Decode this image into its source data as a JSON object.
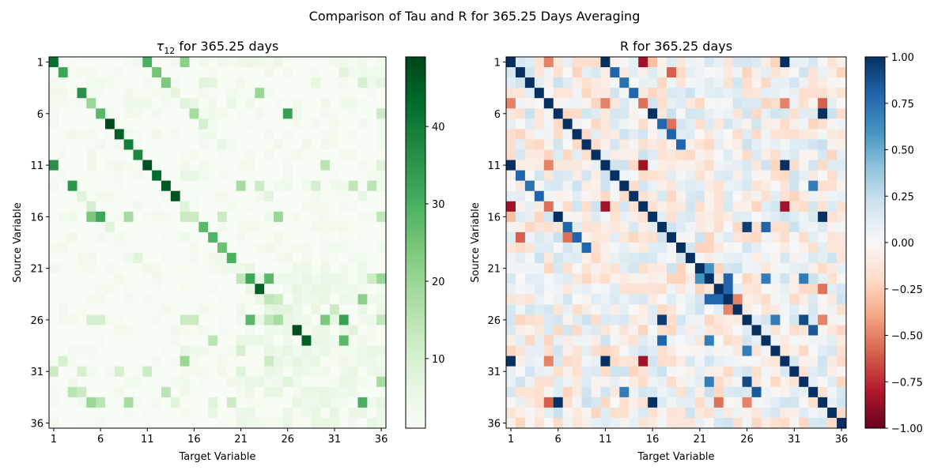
{
  "suptitle": "Comparison of Tau and R for 365.25 Days Averaging",
  "chart_data": [
    {
      "type": "heatmap",
      "title_prefix": "τ",
      "title_sub": "12",
      "title_rest": " for 365.25 days",
      "xlabel": "Target Variable",
      "ylabel": "Source Variable",
      "xticks": [
        "1",
        "6",
        "11",
        "16",
        "21",
        "26",
        "31",
        "36"
      ],
      "yticks": [
        "1",
        "6",
        "11",
        "16",
        "21",
        "26",
        "31",
        "36"
      ],
      "colormap": "Greens",
      "clim": [
        1,
        49
      ],
      "colorbar_ticks": [
        "10",
        "20",
        "30",
        "40"
      ],
      "colorbar_tick_values": [
        10,
        20,
        30,
        40
      ],
      "size": 36,
      "cells_note": "values listed as [row, col, value] for cells above background (~1)",
      "cells": [
        [
          1,
          1,
          42
        ],
        [
          1,
          11,
          30
        ],
        [
          1,
          15,
          22
        ],
        [
          1,
          21,
          4
        ],
        [
          1,
          22,
          5
        ],
        [
          1,
          23,
          4
        ],
        [
          1,
          25,
          5
        ],
        [
          1,
          32,
          4
        ],
        [
          1,
          34,
          4
        ],
        [
          2,
          2,
          32
        ],
        [
          2,
          12,
          25
        ],
        [
          2,
          32,
          8
        ],
        [
          3,
          13,
          24
        ],
        [
          3,
          17,
          8
        ],
        [
          3,
          18,
          7
        ],
        [
          3,
          29,
          6
        ],
        [
          3,
          34,
          10
        ],
        [
          3,
          36,
          7
        ],
        [
          4,
          4,
          36
        ],
        [
          4,
          14,
          7
        ],
        [
          4,
          23,
          20
        ],
        [
          5,
          5,
          20
        ],
        [
          5,
          9,
          4
        ],
        [
          5,
          10,
          4
        ],
        [
          5,
          15,
          8
        ],
        [
          5,
          16,
          6
        ],
        [
          5,
          20,
          5
        ],
        [
          5,
          30,
          4
        ],
        [
          6,
          6,
          28
        ],
        [
          6,
          16,
          18
        ],
        [
          6,
          26,
          33
        ],
        [
          6,
          36,
          12
        ],
        [
          7,
          7,
          48
        ],
        [
          7,
          17,
          10
        ],
        [
          8,
          8,
          45
        ],
        [
          9,
          9,
          40
        ],
        [
          9,
          19,
          6
        ],
        [
          10,
          10,
          38
        ],
        [
          11,
          1,
          36
        ],
        [
          11,
          11,
          47
        ],
        [
          11,
          30,
          15
        ],
        [
          11,
          36,
          8
        ],
        [
          12,
          12,
          43
        ],
        [
          12,
          15,
          6
        ],
        [
          12,
          16,
          6
        ],
        [
          13,
          3,
          35
        ],
        [
          13,
          13,
          46
        ],
        [
          13,
          21,
          18
        ],
        [
          13,
          23,
          12
        ],
        [
          13,
          29,
          10
        ],
        [
          13,
          33,
          14
        ],
        [
          13,
          35,
          15
        ],
        [
          14,
          4,
          8
        ],
        [
          14,
          14,
          47
        ],
        [
          14,
          24,
          8
        ],
        [
          14,
          34,
          6
        ],
        [
          15,
          5,
          10
        ],
        [
          15,
          15,
          8
        ],
        [
          16,
          5,
          24
        ],
        [
          16,
          6,
          32
        ],
        [
          16,
          9,
          18
        ],
        [
          16,
          15,
          12
        ],
        [
          16,
          16,
          12
        ],
        [
          16,
          19,
          12
        ],
        [
          16,
          25,
          20
        ],
        [
          16,
          36,
          14
        ],
        [
          17,
          7,
          8
        ],
        [
          17,
          17,
          28
        ],
        [
          18,
          18,
          29
        ],
        [
          19,
          19,
          26
        ],
        [
          20,
          10,
          8
        ],
        [
          20,
          20,
          30
        ],
        [
          22,
          21,
          14
        ],
        [
          22,
          22,
          32
        ],
        [
          22,
          24,
          28
        ],
        [
          22,
          35,
          12
        ],
        [
          22,
          36,
          20
        ],
        [
          23,
          23,
          45
        ],
        [
          23,
          30,
          6
        ],
        [
          24,
          24,
          14
        ],
        [
          24,
          25,
          12
        ],
        [
          24,
          34,
          22
        ],
        [
          25,
          25,
          8
        ],
        [
          25,
          26,
          8
        ],
        [
          25,
          31,
          12
        ],
        [
          25,
          34,
          6
        ],
        [
          26,
          5,
          10
        ],
        [
          26,
          6,
          10
        ],
        [
          26,
          15,
          12
        ],
        [
          26,
          16,
          12
        ],
        [
          26,
          22,
          28
        ],
        [
          26,
          24,
          14
        ],
        [
          26,
          25,
          18
        ],
        [
          26,
          30,
          24
        ],
        [
          26,
          32,
          33
        ],
        [
          26,
          36,
          14
        ],
        [
          27,
          27,
          48
        ],
        [
          27,
          33,
          8
        ],
        [
          28,
          18,
          15
        ],
        [
          28,
          23,
          6
        ],
        [
          28,
          28,
          45
        ],
        [
          28,
          32,
          28
        ],
        [
          29,
          15,
          6
        ],
        [
          29,
          21,
          10
        ],
        [
          29,
          24,
          6
        ],
        [
          30,
          2,
          10
        ],
        [
          30,
          15,
          20
        ],
        [
          30,
          24,
          12
        ],
        [
          31,
          1,
          12
        ],
        [
          31,
          4,
          10
        ],
        [
          31,
          8,
          10
        ],
        [
          31,
          11,
          12
        ],
        [
          31,
          21,
          8
        ],
        [
          31,
          24,
          6
        ],
        [
          32,
          26,
          8
        ],
        [
          32,
          36,
          18
        ],
        [
          33,
          3,
          15
        ],
        [
          33,
          4,
          12
        ],
        [
          33,
          13,
          15
        ],
        [
          33,
          24,
          6
        ],
        [
          34,
          5,
          20
        ],
        [
          34,
          6,
          15
        ],
        [
          34,
          9,
          18
        ],
        [
          34,
          14,
          8
        ],
        [
          34,
          18,
          8
        ],
        [
          34,
          20,
          12
        ],
        [
          34,
          34,
          30
        ],
        [
          35,
          18,
          6
        ],
        [
          35,
          29,
          6
        ],
        [
          35,
          34,
          6
        ]
      ]
    },
    {
      "type": "heatmap",
      "title": "R for 365.25 days",
      "xlabel": "Target Variable",
      "ylabel": "Source Variable",
      "xticks": [
        "1",
        "6",
        "11",
        "16",
        "21",
        "26",
        "31",
        "36"
      ],
      "yticks": [
        "1",
        "6",
        "11",
        "16",
        "21",
        "26",
        "31",
        "36"
      ],
      "colormap": "RdBu",
      "clim": [
        -1,
        1
      ],
      "colorbar_ticks": [
        "1.00",
        "0.75",
        "0.50",
        "0.25",
        "0.00",
        "−0.25",
        "−0.50",
        "−0.75",
        "−1.00"
      ],
      "colorbar_tick_values": [
        1,
        0.75,
        0.5,
        0.25,
        0,
        -0.25,
        -0.5,
        -0.75,
        -1
      ],
      "size": 36,
      "diagonal": 1.0,
      "cells_note": "notable off-diagonal values listed as [row, col, value]; matrix is symmetric; unlisted cells are near zero",
      "cells": [
        [
          1,
          11,
          1.0
        ],
        [
          1,
          30,
          1.0
        ],
        [
          1,
          15,
          -0.85
        ],
        [
          1,
          5,
          -0.5
        ],
        [
          1,
          16,
          -0.3
        ],
        [
          2,
          12,
          0.8
        ],
        [
          2,
          18,
          -0.6
        ],
        [
          3,
          13,
          0.75
        ],
        [
          4,
          14,
          0.8
        ],
        [
          5,
          15,
          -0.55
        ],
        [
          5,
          30,
          -0.5
        ],
        [
          5,
          34,
          -0.6
        ],
        [
          5,
          1,
          -0.5
        ],
        [
          6,
          16,
          1.0
        ],
        [
          6,
          34,
          1.0
        ],
        [
          7,
          17,
          0.8
        ],
        [
          7,
          18,
          -0.55
        ],
        [
          8,
          18,
          0.8
        ],
        [
          9,
          19,
          0.8
        ],
        [
          11,
          30,
          1.0
        ],
        [
          11,
          15,
          -0.85
        ],
        [
          11,
          5,
          -0.5
        ],
        [
          13,
          33,
          0.7
        ],
        [
          15,
          30,
          -0.85
        ],
        [
          16,
          34,
          1.0
        ],
        [
          17,
          26,
          0.95
        ],
        [
          17,
          28,
          0.8
        ],
        [
          21,
          22,
          0.6
        ],
        [
          22,
          24,
          0.8
        ],
        [
          22,
          28,
          0.7
        ],
        [
          22,
          32,
          0.7
        ],
        [
          23,
          24,
          0.8
        ],
        [
          23,
          34,
          -0.55
        ],
        [
          24,
          25,
          -0.5
        ],
        [
          26,
          32,
          0.9
        ],
        [
          26,
          29,
          0.7
        ],
        [
          26,
          34,
          -0.5
        ],
        [
          27,
          33,
          0.85
        ]
      ]
    }
  ]
}
